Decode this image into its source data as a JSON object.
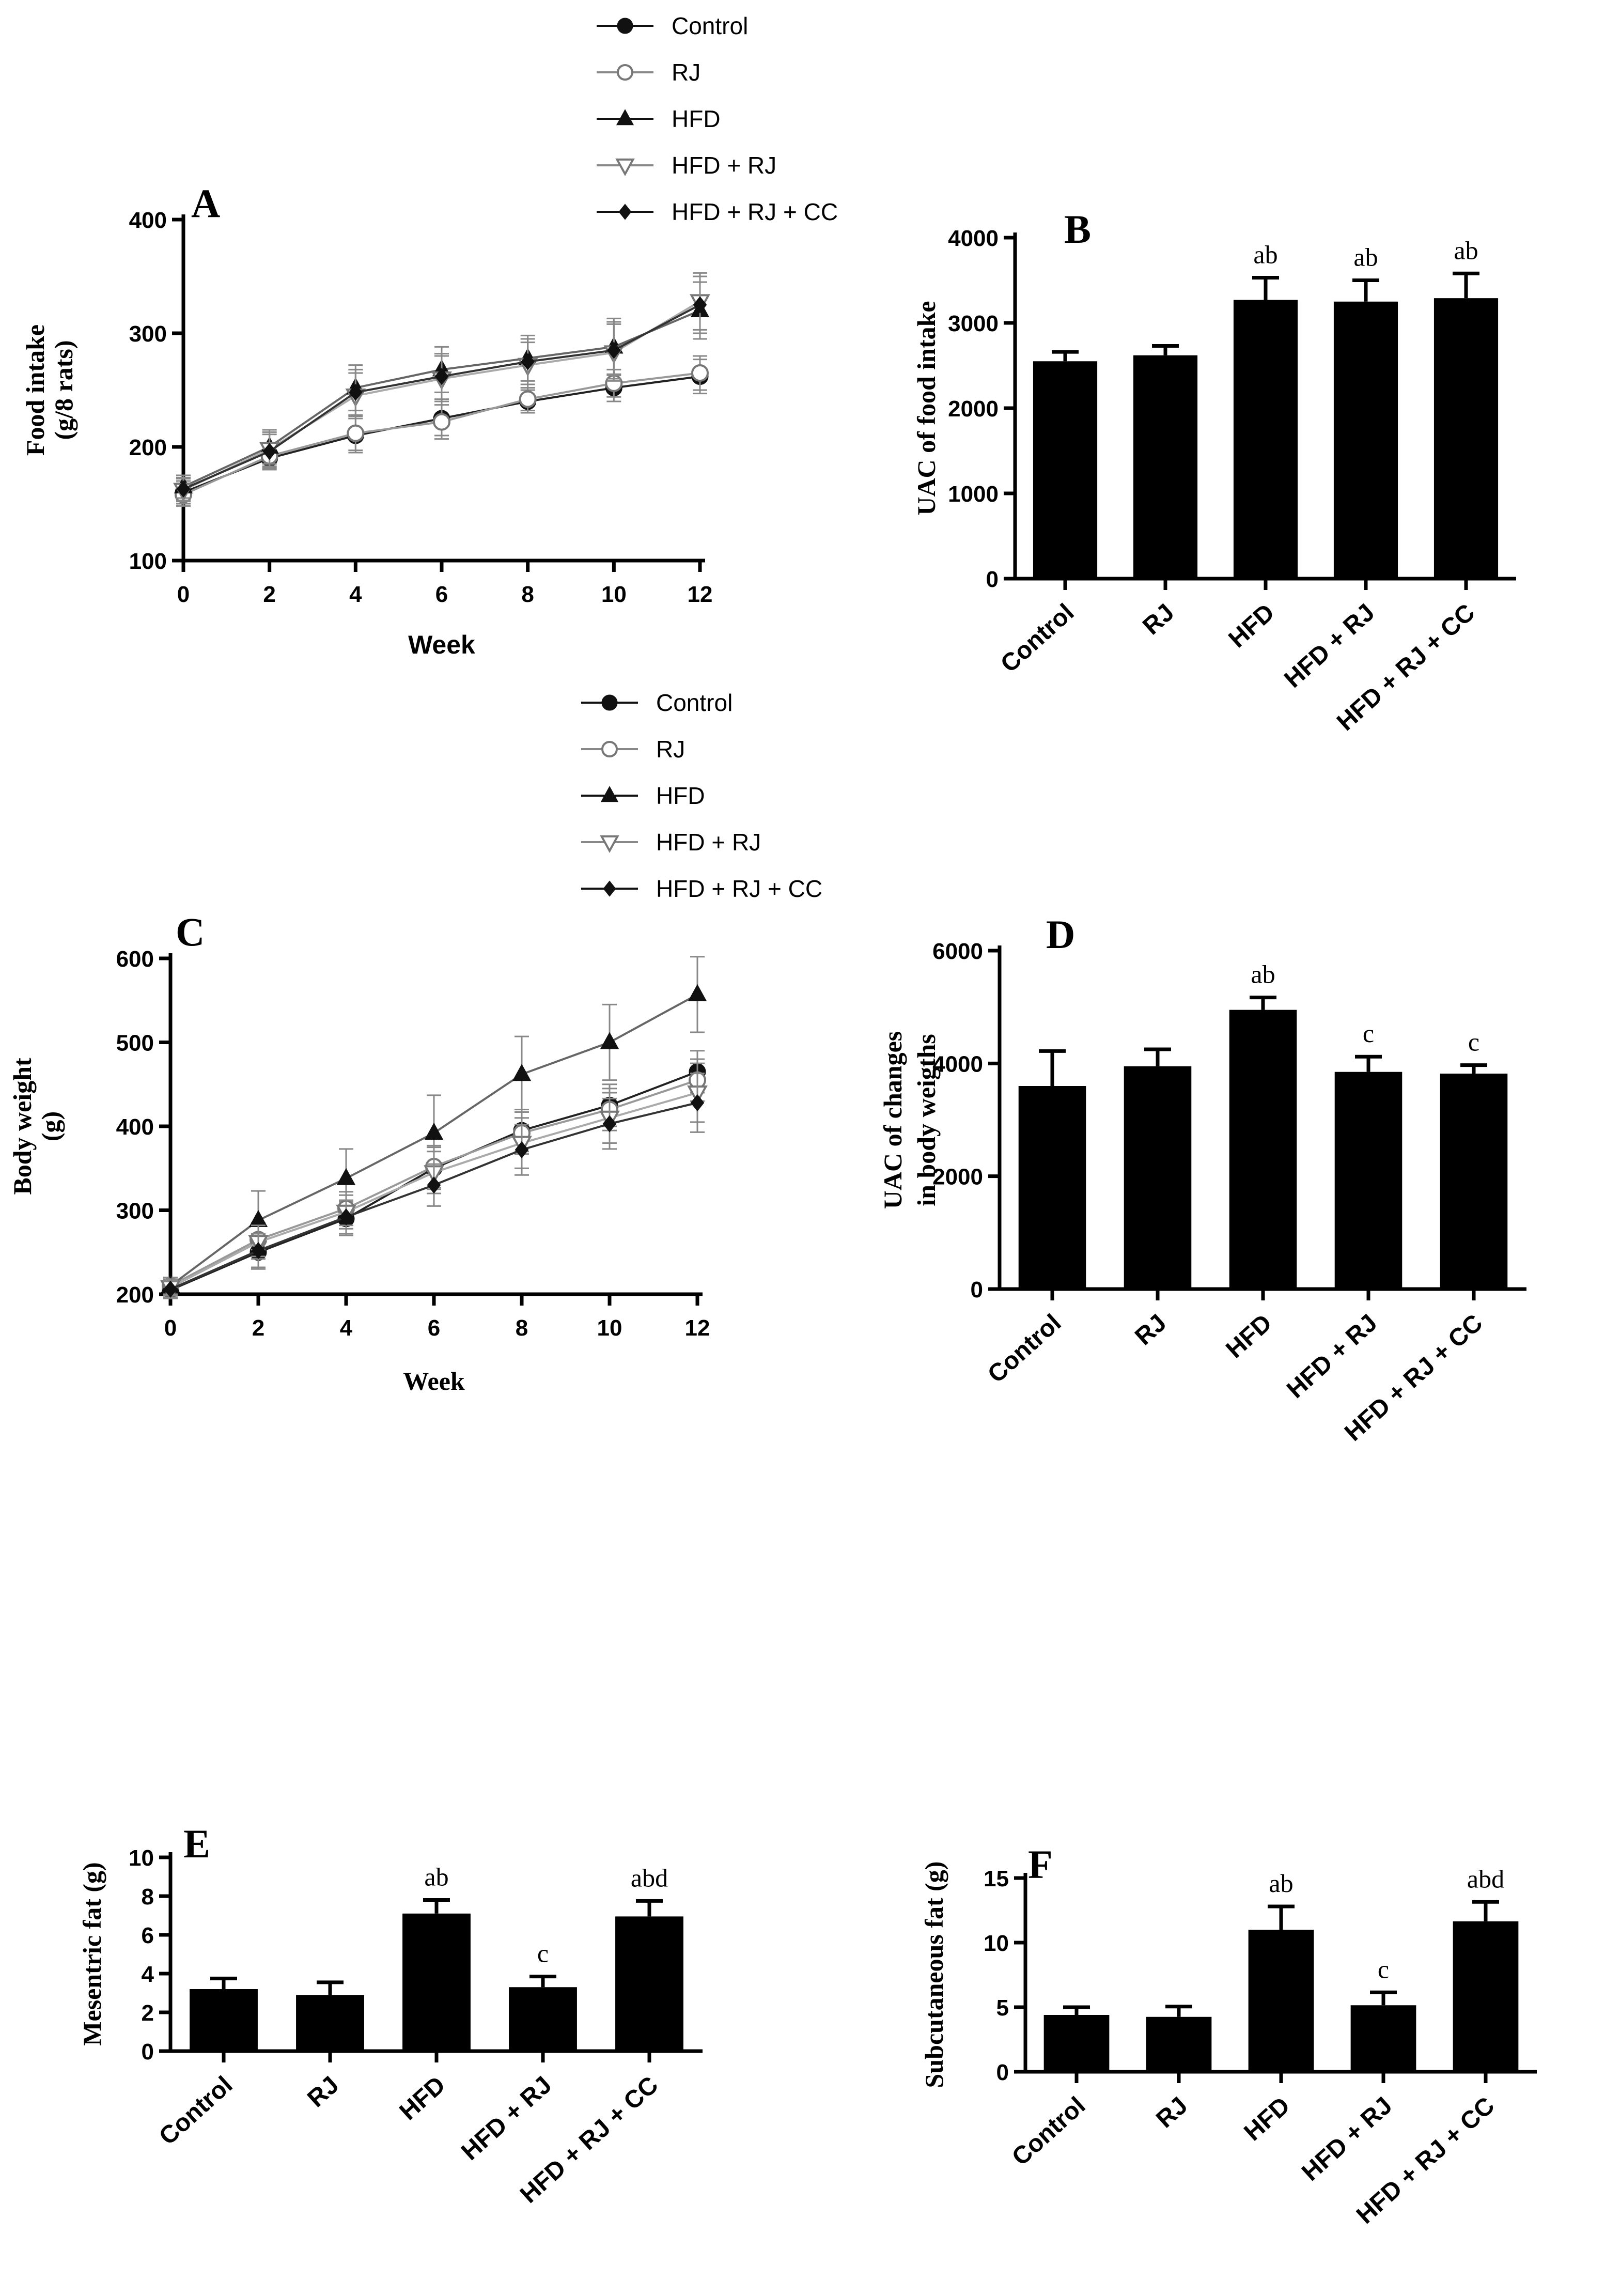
{
  "chart_data": [
    {
      "id": "A",
      "type": "line",
      "panel_letter": "A",
      "xlabel": "Week",
      "ylabel": [
        "Food intake",
        "(g/8 rats)"
      ],
      "x": [
        0,
        2,
        4,
        6,
        8,
        10,
        12
      ],
      "xticks": [
        "0",
        "2",
        "4",
        "6",
        "8",
        "10",
        "12"
      ],
      "xlim": [
        0,
        12
      ],
      "ylim": [
        100,
        400
      ],
      "yticks": [
        "100",
        "200",
        "300",
        "400"
      ],
      "legend": [
        "Control",
        "RJ",
        "HFD",
        "HFD + RJ",
        "HFD + RJ + CC"
      ],
      "series": [
        {
          "name": "Control",
          "marker": "circle-filled",
          "values": [
            160,
            190,
            210,
            225,
            240,
            252,
            262
          ],
          "errors": [
            10,
            10,
            15,
            15,
            10,
            12,
            15
          ]
        },
        {
          "name": "RJ",
          "marker": "circle-open",
          "values": [
            158,
            192,
            212,
            222,
            242,
            256,
            265
          ],
          "errors": [
            10,
            10,
            15,
            15,
            10,
            12,
            15
          ]
        },
        {
          "name": "HFD",
          "marker": "triangle-filled",
          "values": [
            165,
            200,
            252,
            268,
            278,
            288,
            320
          ],
          "errors": [
            10,
            15,
            20,
            20,
            20,
            25,
            25
          ]
        },
        {
          "name": "HFD + RJ",
          "marker": "triangle-down-open",
          "values": [
            162,
            198,
            245,
            260,
            272,
            283,
            328
          ],
          "errors": [
            10,
            15,
            20,
            20,
            20,
            25,
            25
          ]
        },
        {
          "name": "HFD + RJ + CC",
          "marker": "diamond-filled",
          "values": [
            163,
            196,
            248,
            262,
            275,
            285,
            325
          ],
          "errors": [
            10,
            15,
            20,
            20,
            20,
            25,
            25
          ]
        }
      ]
    },
    {
      "id": "B",
      "type": "bar",
      "panel_letter": "B",
      "ylabel": [
        "UAC of food intake"
      ],
      "categories": [
        "Control",
        "RJ",
        "HFD",
        "HFD + RJ",
        "HFD + RJ + CC"
      ],
      "values": [
        2550,
        2620,
        3270,
        3250,
        3290
      ],
      "errors": [
        110,
        110,
        260,
        250,
        290
      ],
      "annotations": [
        "",
        "",
        "ab",
        "ab",
        "ab"
      ],
      "ylim": [
        0,
        4000
      ],
      "yticks": [
        "0",
        "1000",
        "2000",
        "3000",
        "4000"
      ]
    },
    {
      "id": "C",
      "type": "line",
      "panel_letter": "C",
      "xlabel": "Week",
      "ylabel": [
        "Body weight",
        "(g)"
      ],
      "x": [
        0,
        2,
        4,
        6,
        8,
        10,
        12
      ],
      "xticks": [
        "0",
        "2",
        "4",
        "6",
        "8",
        "10",
        "12"
      ],
      "xlim": [
        0,
        12
      ],
      "ylim": [
        200,
        600
      ],
      "yticks": [
        "200",
        "300",
        "400",
        "500",
        "600"
      ],
      "legend": [
        "Control",
        "RJ",
        "HFD",
        "HFD + RJ",
        "HFD + RJ + CC"
      ],
      "series": [
        {
          "name": "Control",
          "marker": "circle-filled",
          "values": [
            205,
            250,
            290,
            350,
            395,
            425,
            465
          ],
          "errors": [
            10,
            20,
            20,
            25,
            25,
            25,
            25
          ]
        },
        {
          "name": "RJ",
          "marker": "circle-open",
          "values": [
            210,
            265,
            302,
            352,
            392,
            420,
            455
          ],
          "errors": [
            10,
            20,
            20,
            25,
            25,
            25,
            25
          ]
        },
        {
          "name": "HFD",
          "marker": "triangle-filled",
          "values": [
            210,
            288,
            338,
            392,
            462,
            500,
            557
          ],
          "errors": [
            10,
            35,
            35,
            45,
            45,
            45,
            45
          ]
        },
        {
          "name": "HFD + RJ",
          "marker": "triangle-down-open",
          "values": [
            208,
            262,
            298,
            345,
            380,
            410,
            440
          ],
          "errors": [
            10,
            20,
            20,
            25,
            30,
            30,
            35
          ]
        },
        {
          "name": "HFD + RJ + CC",
          "marker": "diamond-filled",
          "values": [
            206,
            252,
            292,
            330,
            372,
            403,
            428
          ],
          "errors": [
            10,
            20,
            20,
            25,
            30,
            30,
            35
          ]
        }
      ]
    },
    {
      "id": "D",
      "type": "bar",
      "panel_letter": "D",
      "ylabel": [
        "UAC of changes",
        "in body weigths"
      ],
      "categories": [
        "Control",
        "RJ",
        "HFD",
        "HFD + RJ",
        "HFD + RJ + CC"
      ],
      "values": [
        3600,
        3950,
        4950,
        3850,
        3820
      ],
      "errors": [
        620,
        300,
        220,
        270,
        150
      ],
      "annotations": [
        "",
        "",
        "ab",
        "c",
        "c"
      ],
      "ylim": [
        0,
        6000
      ],
      "yticks": [
        "0",
        "2000",
        "4000",
        "6000"
      ]
    },
    {
      "id": "E",
      "type": "bar",
      "panel_letter": "E",
      "ylabel": [
        "Mesentric fat (g)"
      ],
      "categories": [
        "Control",
        "RJ",
        "HFD",
        "HFD + RJ",
        "HFD + RJ + CC"
      ],
      "values": [
        3.2,
        2.9,
        7.1,
        3.3,
        6.95
      ],
      "errors": [
        0.55,
        0.65,
        0.7,
        0.55,
        0.8
      ],
      "annotations": [
        "",
        "",
        "ab",
        "c",
        "abd"
      ],
      "ylim": [
        0,
        10
      ],
      "yticks": [
        "0",
        "2",
        "4",
        "6",
        "8",
        "10"
      ]
    },
    {
      "id": "F",
      "type": "bar",
      "panel_letter": "F",
      "ylabel": [
        "Subcutaneous fat (g)"
      ],
      "categories": [
        "Control",
        "RJ",
        "HFD",
        "HFD + RJ",
        "HFD + RJ + CC"
      ],
      "values": [
        4.4,
        4.25,
        11.0,
        5.15,
        11.65
      ],
      "errors": [
        0.6,
        0.8,
        1.8,
        1.0,
        1.5
      ],
      "annotations": [
        "",
        "",
        "ab",
        "c",
        "abd"
      ],
      "ylim": [
        0,
        15
      ],
      "yticks": [
        "0",
        "5",
        "10",
        "15"
      ]
    }
  ]
}
